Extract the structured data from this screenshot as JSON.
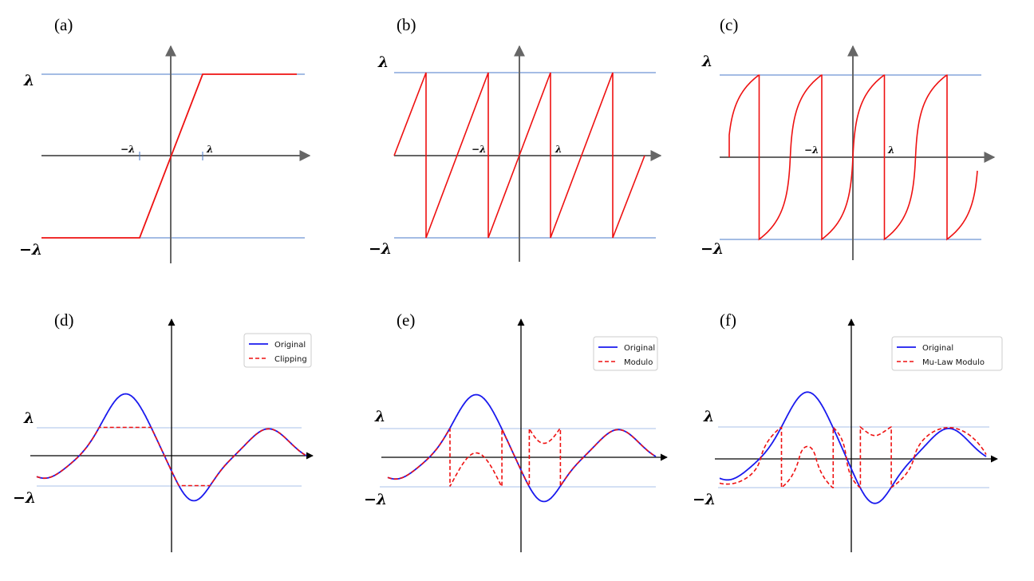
{
  "figure": {
    "panels": [
      {
        "id": "a",
        "label": "(a)",
        "lambda_label": "λ",
        "neg_lambda_label": "−λ",
        "tick_neg": "−λ",
        "tick_pos": "λ"
      },
      {
        "id": "b",
        "label": "(b)",
        "lambda_label": "λ",
        "neg_lambda_label": "−λ",
        "tick_neg": "−λ",
        "tick_pos": "λ"
      },
      {
        "id": "c",
        "label": "(c)",
        "lambda_label": "λ",
        "neg_lambda_label": "−λ",
        "tick_neg": "−λ",
        "tick_pos": "λ"
      },
      {
        "id": "d",
        "label": "(d)",
        "lambda_label": "λ",
        "neg_lambda_label": "−λ",
        "legend": [
          "Original",
          "Clipping"
        ]
      },
      {
        "id": "e",
        "label": "(e)",
        "lambda_label": "λ",
        "neg_lambda_label": "−λ",
        "legend": [
          "Original",
          "Modulo"
        ]
      },
      {
        "id": "f",
        "label": "(f)",
        "lambda_label": "λ",
        "neg_lambda_label": "−λ",
        "legend": [
          "Original",
          "Mu-Law Modulo"
        ]
      }
    ]
  },
  "colors": {
    "curve_red": "#ee1111",
    "original_blue": "#1a1aee",
    "threshold_line_top": "#4a7ac8",
    "threshold_line_bottom": "#a8c0e8",
    "axis_gray": "#666666",
    "axis_black": "#000000"
  },
  "chart_data": [
    {
      "type": "line",
      "panel": "a",
      "description_function": "clipping",
      "threshold": 1,
      "xlim": [
        -2,
        2
      ],
      "ylim": [
        -1,
        1
      ],
      "series": [
        {
          "name": "",
          "function": "clip(x, -λ, λ)"
        }
      ]
    },
    {
      "type": "line",
      "panel": "b",
      "description_function": "modulo",
      "threshold": 1,
      "xlim": [
        -4,
        4
      ],
      "ylim": [
        -1,
        1
      ],
      "series": [
        {
          "name": "",
          "function": "mod(x + λ, 2λ) − λ"
        }
      ]
    },
    {
      "type": "line",
      "panel": "c",
      "description_function": "mu-law modulo",
      "threshold": 1,
      "xlim": [
        -4,
        4
      ],
      "ylim": [
        -1,
        1
      ],
      "series": [
        {
          "name": "",
          "function": "mu-law companded modulo"
        }
      ]
    },
    {
      "type": "line",
      "panel": "d",
      "threshold": 1,
      "series": [
        {
          "name": "Original",
          "style": "solid"
        },
        {
          "name": "Clipping",
          "style": "dashed"
        }
      ]
    },
    {
      "type": "line",
      "panel": "e",
      "threshold": 1,
      "series": [
        {
          "name": "Original",
          "style": "solid"
        },
        {
          "name": "Modulo",
          "style": "dashed"
        }
      ]
    },
    {
      "type": "line",
      "panel": "f",
      "threshold": 1,
      "series": [
        {
          "name": "Original",
          "style": "solid"
        },
        {
          "name": "Mu-Law Modulo",
          "style": "dashed"
        }
      ]
    }
  ]
}
